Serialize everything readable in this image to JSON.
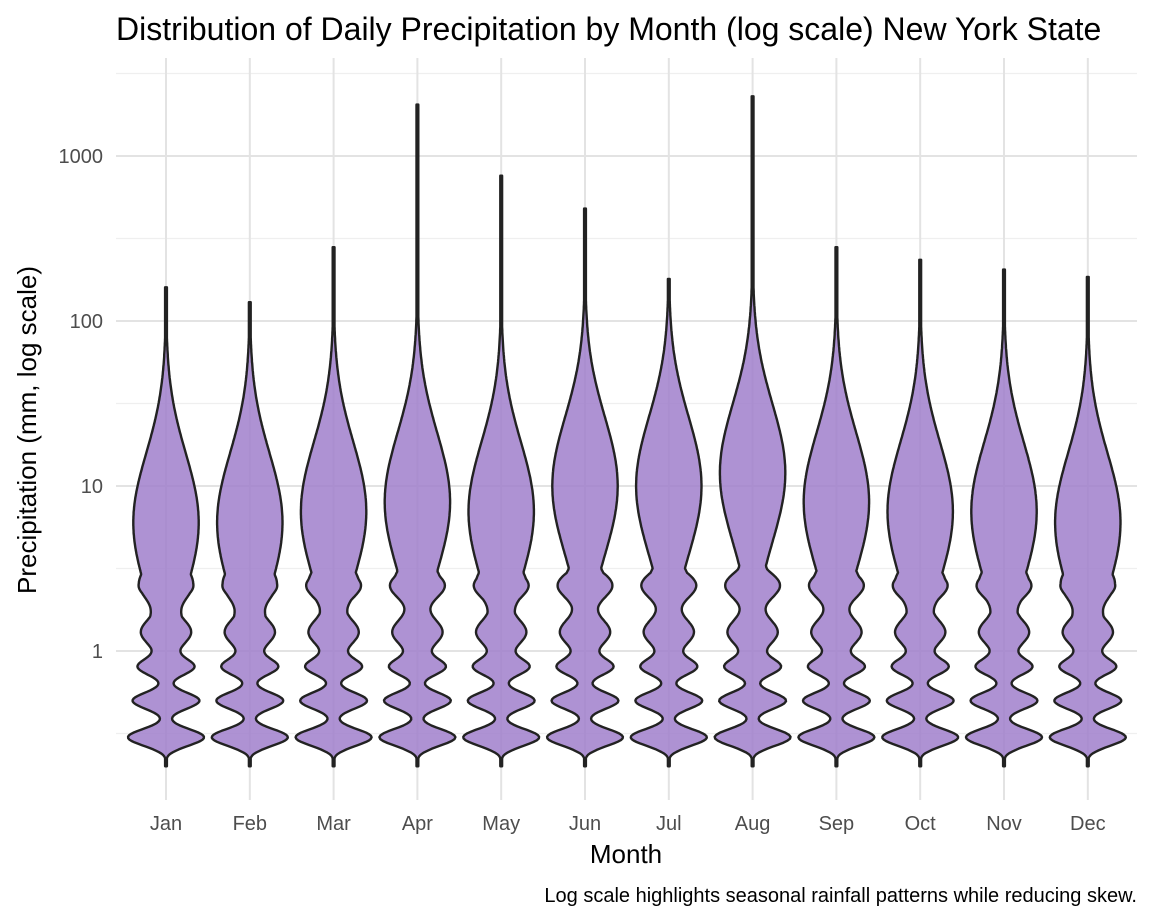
{
  "chart_data": {
    "type": "violin",
    "title": "Distribution of Daily Precipitation by Month (log scale) New York State",
    "xlabel": "Month",
    "ylabel": "Precipitation (mm, log scale)",
    "caption": "Log scale highlights seasonal rainfall patterns while reducing skew.",
    "y_scale": "log10",
    "ylim": [
      0.14,
      3600
    ],
    "y_ticks": [
      1,
      10,
      100,
      1000
    ],
    "y_tick_labels": [
      "1",
      "10",
      "100",
      "1000"
    ],
    "grid": true,
    "fill_color": "#a07fcb",
    "outline_color": "#222222",
    "categories": [
      "Jan",
      "Feb",
      "Mar",
      "Apr",
      "May",
      "Jun",
      "Jul",
      "Aug",
      "Sep",
      "Oct",
      "Nov",
      "Dec"
    ],
    "min": [
      0.2,
      0.2,
      0.2,
      0.2,
      0.2,
      0.2,
      0.2,
      0.2,
      0.2,
      0.2,
      0.2,
      0.2
    ],
    "max": [
      160,
      130,
      280,
      2050,
      760,
      480,
      180,
      2300,
      280,
      235,
      205,
      185
    ],
    "mode": [
      6,
      6,
      7,
      8,
      7,
      10,
      10,
      12,
      8,
      7,
      7,
      6
    ]
  }
}
